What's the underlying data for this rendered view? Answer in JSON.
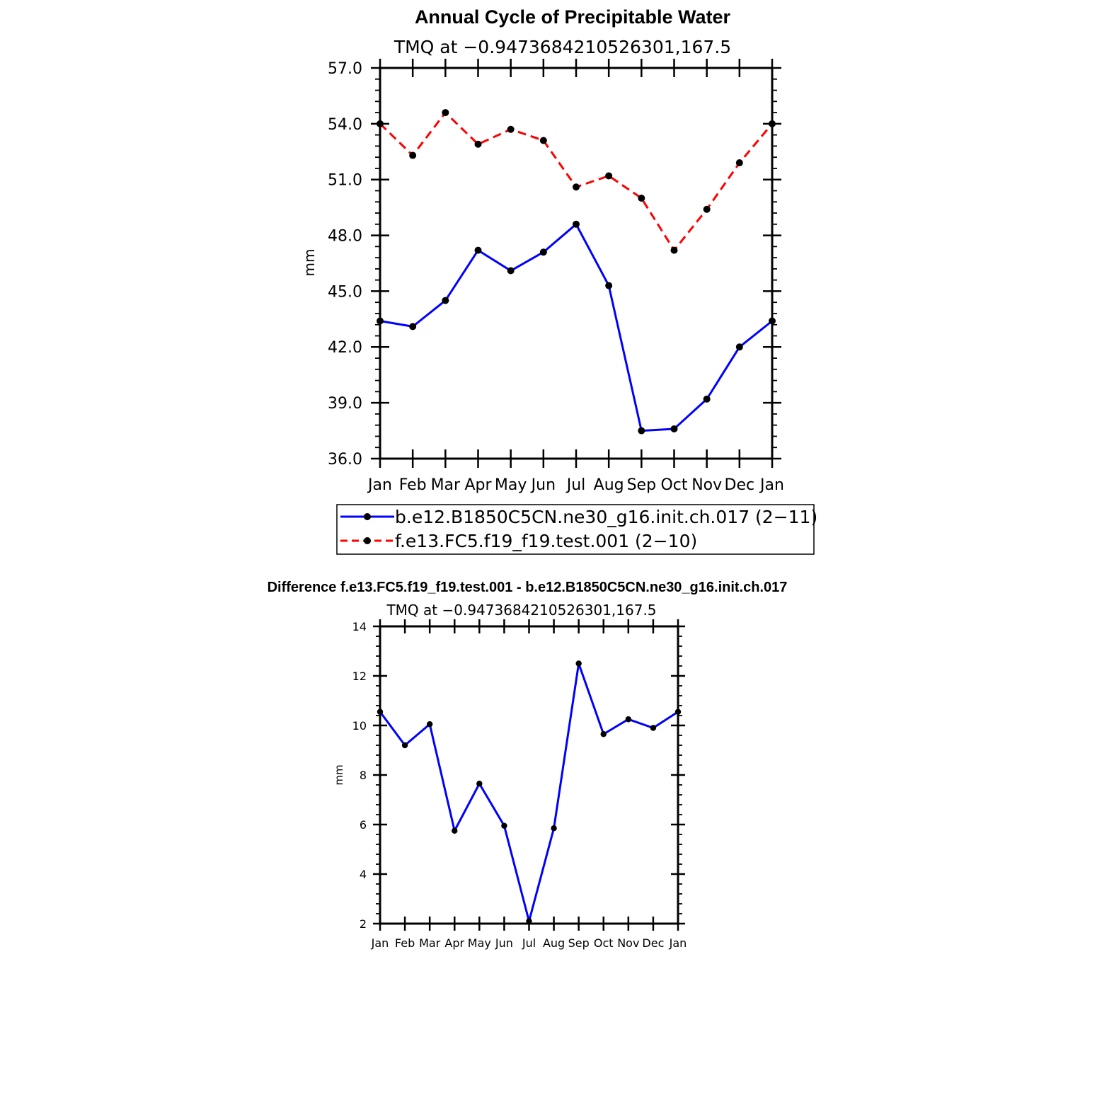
{
  "chart_data": [
    {
      "type": "line",
      "title": "Annual Cycle of Precipitable Water",
      "subtitle": "TMQ at −0.9473684210526301,167.5",
      "ylabel": "mm",
      "xlabel": "",
      "ylim": [
        36.0,
        57.0
      ],
      "yticks": [
        "36.0",
        "39.0",
        "42.0",
        "45.0",
        "48.0",
        "51.0",
        "54.0",
        "57.0"
      ],
      "categories": [
        "Jan",
        "Feb",
        "Mar",
        "Apr",
        "May",
        "Jun",
        "Jul",
        "Aug",
        "Sep",
        "Oct",
        "Nov",
        "Dec",
        "Jan"
      ],
      "series": [
        {
          "name": "b.e12.B1850C5CN.ne30_g16.init.ch.017 (2−11)",
          "color": "#0000ff",
          "style": "solid",
          "values": [
            43.4,
            43.1,
            44.5,
            47.2,
            46.1,
            47.1,
            48.6,
            45.3,
            37.5,
            37.6,
            39.2,
            42.0,
            43.4
          ]
        },
        {
          "name": "f.e13.FC5.f19_f19.test.001 (2−10)",
          "color": "#ff0000",
          "style": "dashed",
          "values": [
            54.0,
            52.3,
            54.6,
            52.9,
            53.7,
            53.1,
            50.6,
            51.2,
            50.0,
            47.2,
            49.4,
            51.9,
            54.0
          ]
        }
      ]
    },
    {
      "type": "line",
      "title": "Difference f.e13.FC5.f19_f19.test.001 - b.e12.B1850C5CN.ne30_g16.init.ch.017",
      "subtitle": "TMQ at −0.9473684210526301,167.5",
      "ylabel": "mm",
      "xlabel": "",
      "ylim": [
        2,
        14
      ],
      "yticks": [
        "2",
        "4",
        "6",
        "8",
        "10",
        "12",
        "14"
      ],
      "categories": [
        "Jan",
        "Feb",
        "Mar",
        "Apr",
        "May",
        "Jun",
        "Jul",
        "Aug",
        "Sep",
        "Oct",
        "Nov",
        "Dec",
        "Jan"
      ],
      "series": [
        {
          "name": "difference",
          "color": "#0000ff",
          "style": "solid",
          "values": [
            10.55,
            9.2,
            10.05,
            5.75,
            7.65,
            5.95,
            2.1,
            5.85,
            12.5,
            9.65,
            10.25,
            9.9,
            10.55
          ]
        }
      ]
    }
  ]
}
